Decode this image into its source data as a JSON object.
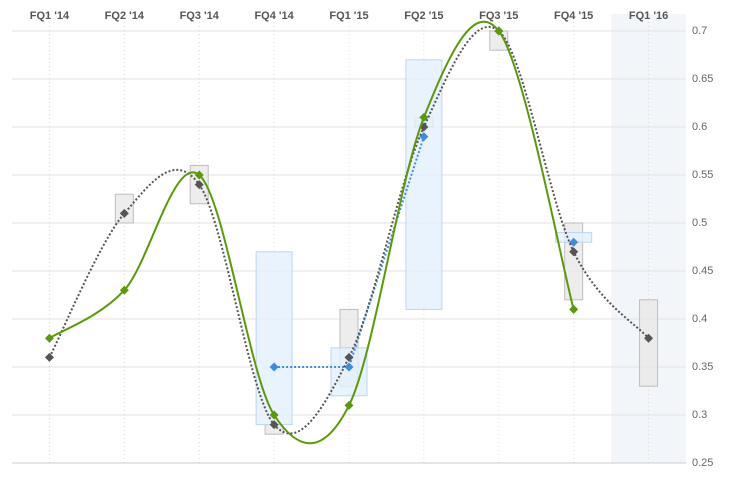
{
  "chart_data": {
    "type": "line",
    "categories": [
      "FQ1 '14",
      "FQ2 '14",
      "FQ3 '14",
      "FQ4 '14",
      "FQ1 '15",
      "FQ2 '15",
      "FQ3 '15",
      "FQ4 '15",
      "FQ1 '16"
    ],
    "ylim": [
      0.25,
      0.7
    ],
    "yticks": [
      0.25,
      0.3,
      0.35,
      0.4,
      0.45,
      0.5,
      0.55,
      0.6,
      0.65,
      0.7
    ],
    "grid": true,
    "ranges": [
      {
        "color": "#e9e9e9",
        "border": "#bdbdbd",
        "low": [
          null,
          0.5,
          0.52,
          0.28,
          0.33,
          0.6,
          0.68,
          0.42,
          0.33
        ],
        "high": [
          null,
          0.53,
          0.56,
          0.29,
          0.41,
          0.61,
          0.7,
          0.5,
          0.42
        ]
      },
      {
        "color": "#e4f0fc",
        "border": "#b9d6f5",
        "low": [
          null,
          null,
          null,
          0.29,
          0.32,
          0.41,
          null,
          0.48,
          null
        ],
        "high": [
          null,
          null,
          null,
          0.47,
          0.37,
          0.67,
          null,
          0.49,
          null
        ]
      }
    ],
    "series": [
      {
        "color": "#3b8de0",
        "style": "dotted",
        "smooth": false,
        "values": [
          null,
          null,
          null,
          0.35,
          0.35,
          0.59,
          null,
          0.48,
          null
        ]
      },
      {
        "color": "#555555",
        "style": "dotted",
        "smooth": true,
        "values": [
          0.36,
          0.51,
          0.54,
          0.29,
          0.36,
          0.6,
          0.7,
          0.47,
          0.38
        ]
      },
      {
        "color": "#5a9a08",
        "style": "solid",
        "smooth": true,
        "values": [
          0.38,
          0.43,
          0.55,
          0.3,
          0.31,
          0.61,
          0.7,
          0.41,
          null
        ]
      }
    ]
  }
}
